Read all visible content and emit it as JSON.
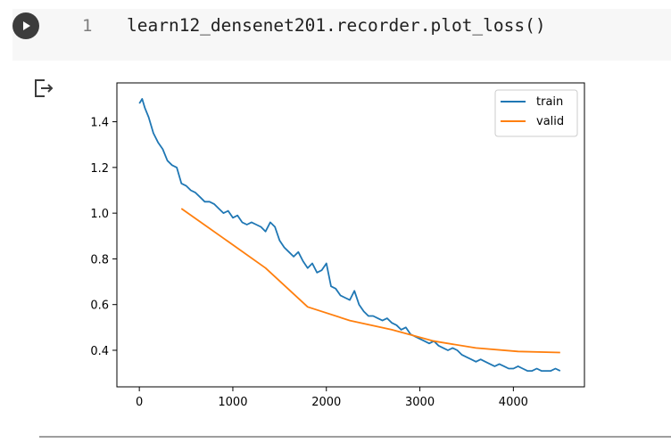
{
  "cell": {
    "line_number": "1",
    "code": "learn12_densenet201.recorder.plot_loss()"
  },
  "output": {
    "icon": "output-redirect-icon"
  },
  "chart_data": {
    "type": "line",
    "title": "",
    "xlabel": "",
    "ylabel": "",
    "xlim": [
      -240,
      4760
    ],
    "ylim": [
      0.24,
      1.57
    ],
    "xticks": [
      0,
      1000,
      2000,
      3000,
      4000
    ],
    "xtick_labels": [
      "0",
      "1000",
      "2000",
      "3000",
      "4000"
    ],
    "yticks": [
      0.4,
      0.6,
      0.8,
      1.0,
      1.2,
      1.4
    ],
    "ytick_labels": [
      "0.4",
      "0.6",
      "0.8",
      "1.0",
      "1.2",
      "1.4"
    ],
    "grid": false,
    "legend": "top-right",
    "series": [
      {
        "name": "train",
        "color": "#1f77b4",
        "x": [
          0,
          30,
          60,
          100,
          150,
          200,
          250,
          300,
          350,
          400,
          450,
          500,
          550,
          600,
          650,
          700,
          750,
          800,
          850,
          900,
          950,
          1000,
          1050,
          1100,
          1150,
          1200,
          1250,
          1300,
          1350,
          1400,
          1450,
          1500,
          1550,
          1600,
          1650,
          1700,
          1750,
          1800,
          1850,
          1900,
          1950,
          2000,
          2050,
          2100,
          2150,
          2200,
          2250,
          2300,
          2350,
          2400,
          2450,
          2500,
          2550,
          2600,
          2650,
          2700,
          2750,
          2800,
          2850,
          2900,
          2950,
          3000,
          3050,
          3100,
          3150,
          3200,
          3250,
          3300,
          3350,
          3400,
          3450,
          3500,
          3550,
          3600,
          3650,
          3700,
          3750,
          3800,
          3850,
          3900,
          3950,
          4000,
          4050,
          4100,
          4150,
          4200,
          4250,
          4300,
          4350,
          4400,
          4450,
          4500
        ],
        "values": [
          1.48,
          1.5,
          1.46,
          1.42,
          1.35,
          1.31,
          1.28,
          1.23,
          1.21,
          1.2,
          1.13,
          1.12,
          1.1,
          1.09,
          1.07,
          1.05,
          1.05,
          1.04,
          1.02,
          1.0,
          1.01,
          0.98,
          0.99,
          0.96,
          0.95,
          0.96,
          0.95,
          0.94,
          0.92,
          0.96,
          0.94,
          0.88,
          0.85,
          0.83,
          0.81,
          0.83,
          0.79,
          0.76,
          0.78,
          0.74,
          0.75,
          0.78,
          0.68,
          0.67,
          0.64,
          0.63,
          0.62,
          0.66,
          0.6,
          0.57,
          0.55,
          0.55,
          0.54,
          0.53,
          0.54,
          0.52,
          0.51,
          0.49,
          0.5,
          0.47,
          0.46,
          0.45,
          0.44,
          0.43,
          0.44,
          0.42,
          0.41,
          0.4,
          0.41,
          0.4,
          0.38,
          0.37,
          0.36,
          0.35,
          0.36,
          0.35,
          0.34,
          0.33,
          0.34,
          0.33,
          0.32,
          0.32,
          0.33,
          0.32,
          0.31,
          0.31,
          0.32,
          0.31,
          0.31,
          0.31,
          0.32,
          0.31
        ]
      },
      {
        "name": "valid",
        "color": "#ff7f0e",
        "x": [
          450,
          900,
          1350,
          1800,
          2250,
          2700,
          3150,
          3600,
          4050,
          4500
        ],
        "values": [
          1.02,
          0.89,
          0.76,
          0.59,
          0.53,
          0.49,
          0.44,
          0.41,
          0.395,
          0.39
        ]
      }
    ]
  }
}
